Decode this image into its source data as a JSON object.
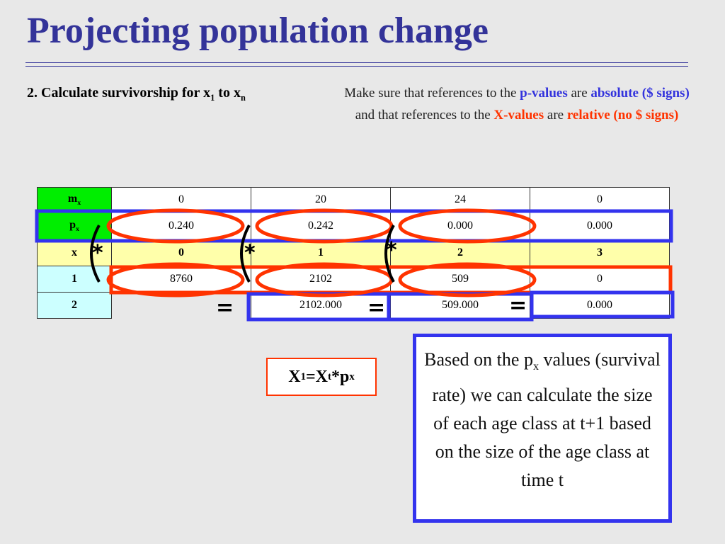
{
  "title": "Projecting population change",
  "step": {
    "text": "2. Calculate survivorship for x",
    "sub1": "1",
    "to": " to x",
    "subn": "n"
  },
  "note": {
    "part1": "Make sure that references to the ",
    "p_values": "p-values",
    "part2": " are ",
    "absolute": "absolute ($ signs)",
    "part3": " and that references to the ",
    "x_values": "X-values",
    "part4": " are ",
    "relative": "relative (no $ signs)"
  },
  "table": {
    "mx": {
      "label": "m",
      "label_sub": "x",
      "values": [
        "0",
        "20",
        "24",
        "0"
      ]
    },
    "px": {
      "label": "p",
      "label_sub": "x",
      "values": [
        "0.240",
        "0.242",
        "0.000",
        "0.000"
      ]
    },
    "x": {
      "label": "x",
      "values": [
        "0",
        "1",
        "2",
        "3"
      ]
    },
    "row1": {
      "label": "1",
      "values": [
        "8760",
        "2102",
        "509",
        "0"
      ]
    },
    "row2": {
      "label": "2",
      "values": [
        "",
        "2102.000",
        "509.000",
        "0.000"
      ]
    }
  },
  "symbols": {
    "times": "*",
    "equals": "="
  },
  "formula": {
    "x": "X",
    "sub1": "1",
    "eq": "=X",
    "subt": "t",
    "star": "*p",
    "subx": "x"
  },
  "explain": {
    "part1": "Based on the p",
    "sub": "x",
    "part2": " values (survival rate) we can calculate the size of each age class at t+1 based on the size of the age class at time t"
  },
  "colors": {
    "title": "#333399",
    "blue_box": "#3333ee",
    "red_ellipse": "#ff3300",
    "green_cell": "#00ee00",
    "cyan_cell": "#ccffff",
    "yellow_row": "#ffffaa"
  }
}
